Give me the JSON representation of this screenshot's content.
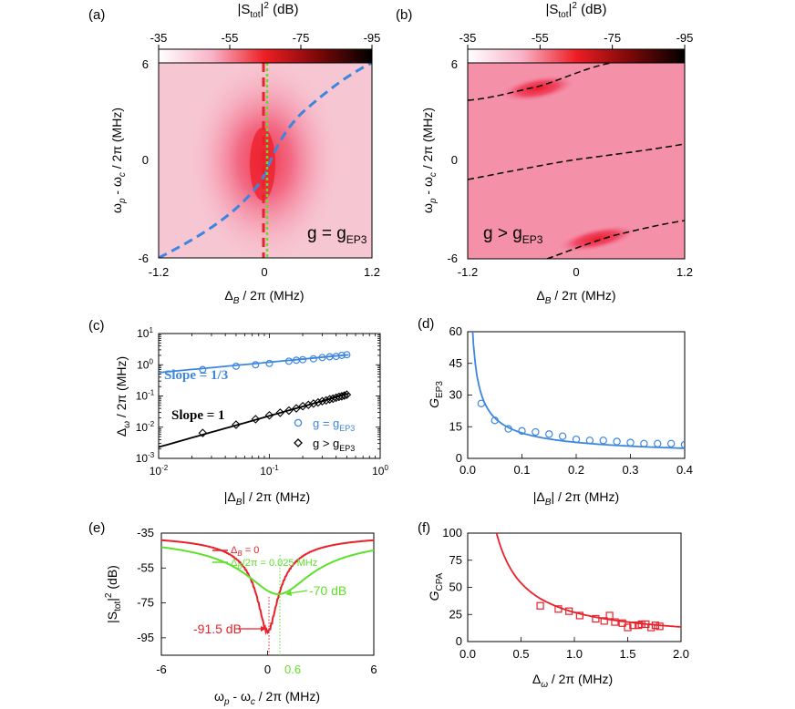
{
  "colors": {
    "blue": "#3d86e0",
    "red": "#e8212a",
    "green": "#5ee02a",
    "black": "#000000"
  },
  "chart_data": [
    {
      "panel": "(a)",
      "type": "heatmap",
      "colorbar_title": "|S_tot|^2 (dB)",
      "colorbar_ticks": [
        "-35",
        "-55",
        "-75",
        "-95"
      ],
      "xlabel": "Δ_B / 2π (MHz)",
      "ylabel": "ω_p - ω_c / 2π (MHz)",
      "xticks": [
        "-1.2",
        "0",
        "1.2"
      ],
      "yticks": [
        "6",
        "0",
        "-6"
      ],
      "xlim": [
        -1.2,
        1.2
      ],
      "ylim": [
        -6,
        6
      ],
      "annotation": "g = g_EP3",
      "lines": [
        "blue dashed dispersion curve",
        "red dashed Δ_B = 0",
        "green dotted Δ_B = 0.025 MHz"
      ]
    },
    {
      "panel": "(b)",
      "type": "heatmap",
      "colorbar_title": "|S_tot|^2 (dB)",
      "colorbar_ticks": [
        "-35",
        "-55",
        "-75",
        "-95"
      ],
      "xlabel": "Δ_B / 2π (MHz)",
      "ylabel": "ω_p - ω_c / 2π (MHz)",
      "xticks": [
        "-1.2",
        "0",
        "1.2"
      ],
      "yticks": [
        "6",
        "0",
        "-6"
      ],
      "xlim": [
        -1.2,
        1.2
      ],
      "ylim": [
        -6,
        6
      ],
      "annotation": "g > g_EP3"
    },
    {
      "panel": "(c)",
      "type": "scatter",
      "scale": "log-log",
      "xlabel": "|Δ_B| / 2π (MHz)",
      "ylabel": "Δ_ω / 2π (MHz)",
      "xlim": [
        0.01,
        1
      ],
      "ylim": [
        0.001,
        10
      ],
      "xticks": [
        "10^-2",
        "10^-1",
        "10^0"
      ],
      "yticks": [
        "10^1",
        "10^0",
        "10^-1",
        "10^-2",
        "10^-3"
      ],
      "slope_labels": [
        "Slope = 1/3",
        "Slope = 1"
      ],
      "series": [
        {
          "name": "g = g_EP3",
          "marker": "circle",
          "x": [
            0.025,
            0.05,
            0.075,
            0.1,
            0.15,
            0.175,
            0.2,
            0.25,
            0.3,
            0.35,
            0.4,
            0.45,
            0.5
          ],
          "y": [
            0.7,
            0.9,
            1.0,
            1.1,
            1.3,
            1.4,
            1.45,
            1.55,
            1.7,
            1.8,
            1.85,
            2.0,
            2.1
          ]
        },
        {
          "name": "g > g_EP3",
          "marker": "diamond",
          "x": [
            0.025,
            0.05,
            0.075,
            0.1,
            0.125,
            0.15,
            0.175,
            0.2,
            0.225,
            0.25,
            0.275,
            0.3,
            0.325,
            0.35,
            0.375,
            0.4,
            0.425,
            0.45,
            0.475,
            0.5
          ],
          "y": [
            0.0065,
            0.012,
            0.018,
            0.024,
            0.029,
            0.034,
            0.04,
            0.047,
            0.052,
            0.057,
            0.062,
            0.068,
            0.072,
            0.078,
            0.082,
            0.088,
            0.094,
            0.098,
            0.103,
            0.11
          ]
        }
      ],
      "fits": [
        {
          "name": "Slope = 1/3",
          "prefactor": 2.6,
          "exponent": 0.3333
        },
        {
          "name": "Slope = 1",
          "prefactor": 0.23,
          "exponent": 1
        }
      ]
    },
    {
      "panel": "(d)",
      "type": "scatter",
      "xlabel": "|Δ_B| / 2π (MHz)",
      "ylabel": "G_EP3",
      "xlim": [
        0,
        0.4
      ],
      "ylim": [
        0,
        60
      ],
      "xticks": [
        "0.0",
        "0.1",
        "0.2",
        "0.3",
        "0.4"
      ],
      "yticks": [
        "0",
        "15",
        "30",
        "45",
        "60"
      ],
      "series": [
        {
          "name": "data",
          "marker": "circle",
          "x": [
            0.025,
            0.05,
            0.075,
            0.1,
            0.125,
            0.15,
            0.175,
            0.2,
            0.225,
            0.25,
            0.275,
            0.3,
            0.325,
            0.35,
            0.375,
            0.4
          ],
          "y": [
            26,
            18,
            14,
            13,
            12.5,
            11.5,
            10.5,
            9,
            8.5,
            8.5,
            8,
            7.5,
            7,
            7,
            7,
            6.5
          ]
        }
      ],
      "fit": {
        "prefactor": 2.6,
        "exponent": -0.6667
      }
    },
    {
      "panel": "(e)",
      "type": "line",
      "xlabel": "ω_p - ω_c / 2π (MHz)",
      "ylabel": "|S_tot|^2 (dB)",
      "xlim": [
        -6,
        6
      ],
      "ylim": [
        -105,
        -35
      ],
      "xticks": [
        "-6",
        "0",
        "6"
      ],
      "extra_xtick": "0.6",
      "yticks": [
        "-35",
        "-55",
        "-75",
        "-95"
      ],
      "legend": [
        "Δ_B = 0",
        "Δ_B/2π = 0.025 MHz"
      ],
      "annotations": [
        "-91.5 dB",
        "-70 dB"
      ],
      "series": [
        {
          "name": "Δ_B = 0",
          "min_db": -91.5,
          "min_x": 0
        },
        {
          "name": "Δ_B/2π = 0.025 MHz",
          "min_db": -70,
          "min_x": 0.6
        }
      ]
    },
    {
      "panel": "(f)",
      "type": "scatter",
      "xlabel": "Δ_ω / 2π (MHz)",
      "ylabel": "G_CPA",
      "xlim": [
        0,
        2
      ],
      "ylim": [
        0,
        100
      ],
      "xticks": [
        "0.0",
        "0.5",
        "1.0",
        "1.5",
        "2.0"
      ],
      "yticks": [
        "0",
        "25",
        "50",
        "75",
        "100"
      ],
      "series": [
        {
          "name": "data",
          "marker": "square",
          "x": [
            0.68,
            0.85,
            0.95,
            1.05,
            1.2,
            1.28,
            1.33,
            1.38,
            1.45,
            1.5,
            1.55,
            1.6,
            1.63,
            1.67,
            1.72,
            1.76,
            1.8
          ],
          "y": [
            33,
            30,
            28,
            24,
            21,
            19,
            24,
            18,
            17,
            13,
            15,
            15,
            16,
            16,
            13,
            15,
            14
          ]
        }
      ],
      "fit": {
        "prefactor": 27,
        "exponent": -1
      }
    }
  ]
}
